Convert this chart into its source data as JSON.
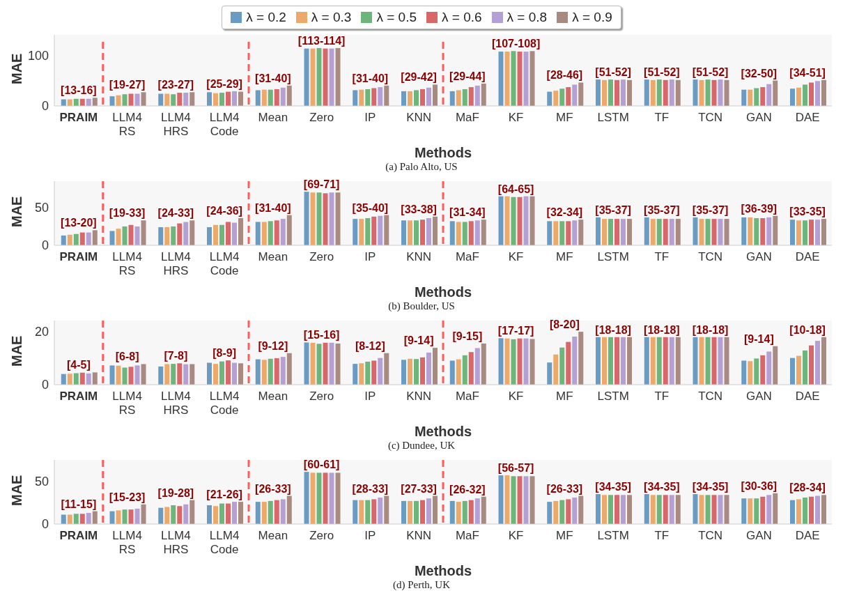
{
  "chart_data": [
    {
      "type": "bar",
      "title": "(a) Palo Alto, US",
      "xlabel": "Methods",
      "ylabel": "MAE",
      "legend": "top",
      "categories": [
        "PRAIM",
        "LLM4\nRS",
        "LLM4\nHRS",
        "LLM4\nCode",
        "Mean",
        "Zero",
        "IP",
        "KNN",
        "MaF",
        "KF",
        "MF",
        "LSTM",
        "TF",
        "TCN",
        "GAN",
        "DAE"
      ],
      "ylim": [
        0,
        140
      ],
      "yticks": [
        0,
        100
      ],
      "series": [
        {
          "name": "λ = 0.2",
          "color": "#6a9bc3",
          "values": [
            13,
            19,
            24,
            27,
            31,
            113,
            31,
            29,
            29,
            107,
            28,
            52,
            52,
            52,
            32,
            34
          ]
        },
        {
          "name": "λ = 0.3",
          "color": "#eda96a",
          "values": [
            13,
            21,
            24,
            25,
            32,
            113,
            32,
            29,
            31,
            107,
            30,
            51,
            51,
            51,
            32,
            36
          ]
        },
        {
          "name": "λ = 0.5",
          "color": "#6db57a",
          "values": [
            14,
            23,
            23,
            26,
            32,
            114,
            33,
            31,
            33,
            108,
            34,
            52,
            52,
            52,
            35,
            42
          ]
        },
        {
          "name": "λ = 0.6",
          "color": "#d9676a",
          "values": [
            14,
            24,
            26,
            28,
            33,
            113,
            35,
            33,
            37,
            107,
            37,
            51,
            51,
            51,
            37,
            46
          ]
        },
        {
          "name": "λ = 0.8",
          "color": "#b5a0d6",
          "values": [
            14,
            24,
            26,
            29,
            36,
            113,
            37,
            36,
            40,
            107,
            42,
            52,
            52,
            52,
            43,
            49
          ]
        },
        {
          "name": "λ = 0.9",
          "color": "#a88a80",
          "values": [
            16,
            27,
            27,
            28,
            40,
            114,
            40,
            42,
            44,
            108,
            46,
            51,
            51,
            51,
            50,
            51
          ]
        }
      ],
      "annotations": [
        "[13-16]",
        "[19-27]",
        "[23-27]",
        "[25-29]",
        "[31-40]",
        "[113-114]",
        "[31-40]",
        "[29-42]",
        "[29-44]",
        "[107-108]",
        "[28-46]",
        "[51-52]",
        "[51-52]",
        "[51-52]",
        "[32-50]",
        "[34-51]"
      ]
    },
    {
      "type": "bar",
      "title": "(b) Boulder, US",
      "xlabel": "Methods",
      "ylabel": "MAE",
      "categories": [
        "PRAIM",
        "LLM4\nRS",
        "LLM4\nHRS",
        "LLM4\nCode",
        "Mean",
        "Zero",
        "IP",
        "KNN",
        "MaF",
        "KF",
        "MF",
        "LSTM",
        "TF",
        "TCN",
        "GAN",
        "DAE"
      ],
      "ylim": [
        0,
        85
      ],
      "yticks": [
        0,
        50
      ],
      "series": [
        {
          "color": "#6a9bc3",
          "values": [
            13,
            19,
            24,
            24,
            31,
            71,
            35,
            33,
            32,
            65,
            32,
            37,
            37,
            37,
            37,
            34
          ]
        },
        {
          "color": "#eda96a",
          "values": [
            14,
            22,
            24,
            27,
            31,
            70,
            35,
            33,
            31,
            65,
            32,
            35,
            35,
            35,
            37,
            33
          ]
        },
        {
          "color": "#6db57a",
          "values": [
            15,
            25,
            25,
            27,
            32,
            70,
            36,
            33,
            31,
            64,
            32,
            35,
            35,
            35,
            36,
            33
          ]
        },
        {
          "color": "#d9676a",
          "values": [
            17,
            27,
            29,
            31,
            33,
            69,
            38,
            34,
            32,
            64,
            32,
            35,
            35,
            35,
            36,
            34
          ]
        },
        {
          "color": "#b5a0d6",
          "values": [
            17,
            25,
            31,
            30,
            35,
            70,
            39,
            36,
            33,
            65,
            33,
            35,
            35,
            35,
            37,
            34
          ]
        },
        {
          "color": "#a88a80",
          "values": [
            20,
            33,
            33,
            36,
            40,
            70,
            40,
            38,
            34,
            65,
            34,
            35,
            35,
            35,
            39,
            35
          ]
        }
      ],
      "annotations": [
        "[13-20]",
        "[19-33]",
        "[24-33]",
        "[24-36]",
        "[31-40]",
        "[69-71]",
        "[35-40]",
        "[33-38]",
        "[31-34]",
        "[64-65]",
        "[32-34]",
        "[35-37]",
        "[35-37]",
        "[35-37]",
        "[36-39]",
        "[33-35]"
      ]
    },
    {
      "type": "bar",
      "title": "(c) Dundee, UK",
      "xlabel": "Methods",
      "ylabel": "MAE",
      "categories": [
        "PRAIM",
        "LLM4\nRS",
        "LLM4\nHRS",
        "LLM4\nCode",
        "Mean",
        "Zero",
        "IP",
        "KNN",
        "MaF",
        "KF",
        "MF",
        "LSTM",
        "TF",
        "TCN",
        "GAN",
        "DAE"
      ],
      "ylim": [
        0,
        24
      ],
      "yticks": [
        0,
        20
      ],
      "series": [
        {
          "color": "#6a9bc3",
          "values": [
            4.0,
            7.2,
            6.8,
            8.2,
            9.5,
            15.8,
            7.8,
            9.3,
            9.0,
            17.4,
            8.3,
            17.8,
            17.8,
            17.8,
            9.0,
            10.0
          ]
        },
        {
          "color": "#eda96a",
          "values": [
            4.1,
            7.1,
            7.7,
            7.8,
            9.3,
            15.7,
            8.0,
            9.7,
            9.5,
            17.3,
            11.3,
            17.8,
            17.8,
            17.8,
            8.8,
            10.8
          ]
        },
        {
          "color": "#6db57a",
          "values": [
            4.3,
            6.4,
            7.8,
            8.7,
            9.7,
            15.3,
            8.6,
            9.6,
            11.0,
            17.0,
            13.9,
            17.8,
            17.8,
            17.8,
            9.8,
            12.8
          ]
        },
        {
          "color": "#d9676a",
          "values": [
            4.5,
            6.7,
            8.0,
            9.1,
            9.9,
            15.7,
            9.0,
            10.2,
            12.2,
            17.3,
            16.0,
            17.8,
            17.8,
            17.8,
            11.0,
            14.7
          ]
        },
        {
          "color": "#b5a0d6",
          "values": [
            4.2,
            7.2,
            7.6,
            8.2,
            10.4,
            15.7,
            10.0,
            12.0,
            13.7,
            17.3,
            18.0,
            17.8,
            17.8,
            17.8,
            12.4,
            16.4
          ]
        },
        {
          "color": "#a88a80",
          "values": [
            4.6,
            7.7,
            7.7,
            8.0,
            11.8,
            15.4,
            11.8,
            13.8,
            15.4,
            17.1,
            19.8,
            17.8,
            17.8,
            17.8,
            14.4,
            17.8
          ]
        }
      ],
      "annotations": [
        "[4-5]",
        "[6-8]",
        "[7-8]",
        "[8-9]",
        "[9-12]",
        "[15-16]",
        "[8-12]",
        "[9-14]",
        "[9-15]",
        "[17-17]",
        "[8-20]",
        "[18-18]",
        "[18-18]",
        "[18-18]",
        "[9-14]",
        "[10-18]"
      ]
    },
    {
      "type": "bar",
      "title": "(d) Perth, UK",
      "xlabel": "Methods",
      "ylabel": "MAE",
      "categories": [
        "PRAIM",
        "LLM4\nRS",
        "LLM4\nHRS",
        "LLM4\nCode",
        "Mean",
        "Zero",
        "IP",
        "KNN",
        "MaF",
        "KF",
        "MF",
        "LSTM",
        "TF",
        "TCN",
        "GAN",
        "DAE"
      ],
      "ylim": [
        0,
        75
      ],
      "yticks": [
        0,
        50
      ],
      "series": [
        {
          "color": "#6a9bc3",
          "values": [
            11,
            15,
            19,
            22,
            26,
            61,
            28,
            27,
            27,
            57,
            26,
            35,
            35,
            35,
            30,
            28
          ]
        },
        {
          "color": "#eda96a",
          "values": [
            11,
            16,
            20,
            21,
            26,
            60,
            28,
            27,
            26,
            57,
            27,
            34,
            34,
            34,
            30,
            29
          ]
        },
        {
          "color": "#6db57a",
          "values": [
            12,
            17,
            22,
            24,
            27,
            60,
            28,
            27,
            27,
            56,
            28,
            34,
            34,
            34,
            30,
            31
          ]
        },
        {
          "color": "#d9676a",
          "values": [
            12,
            17,
            21,
            24,
            28,
            60,
            29,
            28,
            28,
            56,
            29,
            34,
            34,
            34,
            32,
            32
          ]
        },
        {
          "color": "#b5a0d6",
          "values": [
            13,
            18,
            23,
            26,
            29,
            60,
            31,
            30,
            30,
            56,
            31,
            34,
            34,
            34,
            34,
            33
          ]
        },
        {
          "color": "#a88a80",
          "values": [
            15,
            23,
            28,
            26,
            33,
            60,
            33,
            33,
            32,
            56,
            33,
            34,
            34,
            34,
            36,
            34
          ]
        }
      ],
      "annotations": [
        "[11-15]",
        "[15-23]",
        "[19-28]",
        "[21-26]",
        "[26-33]",
        "[60-61]",
        "[28-33]",
        "[27-33]",
        "[26-32]",
        "[56-57]",
        "[26-33]",
        "[34-35]",
        "[34-35]",
        "[34-35]",
        "[30-36]",
        "[28-34]"
      ]
    }
  ]
}
